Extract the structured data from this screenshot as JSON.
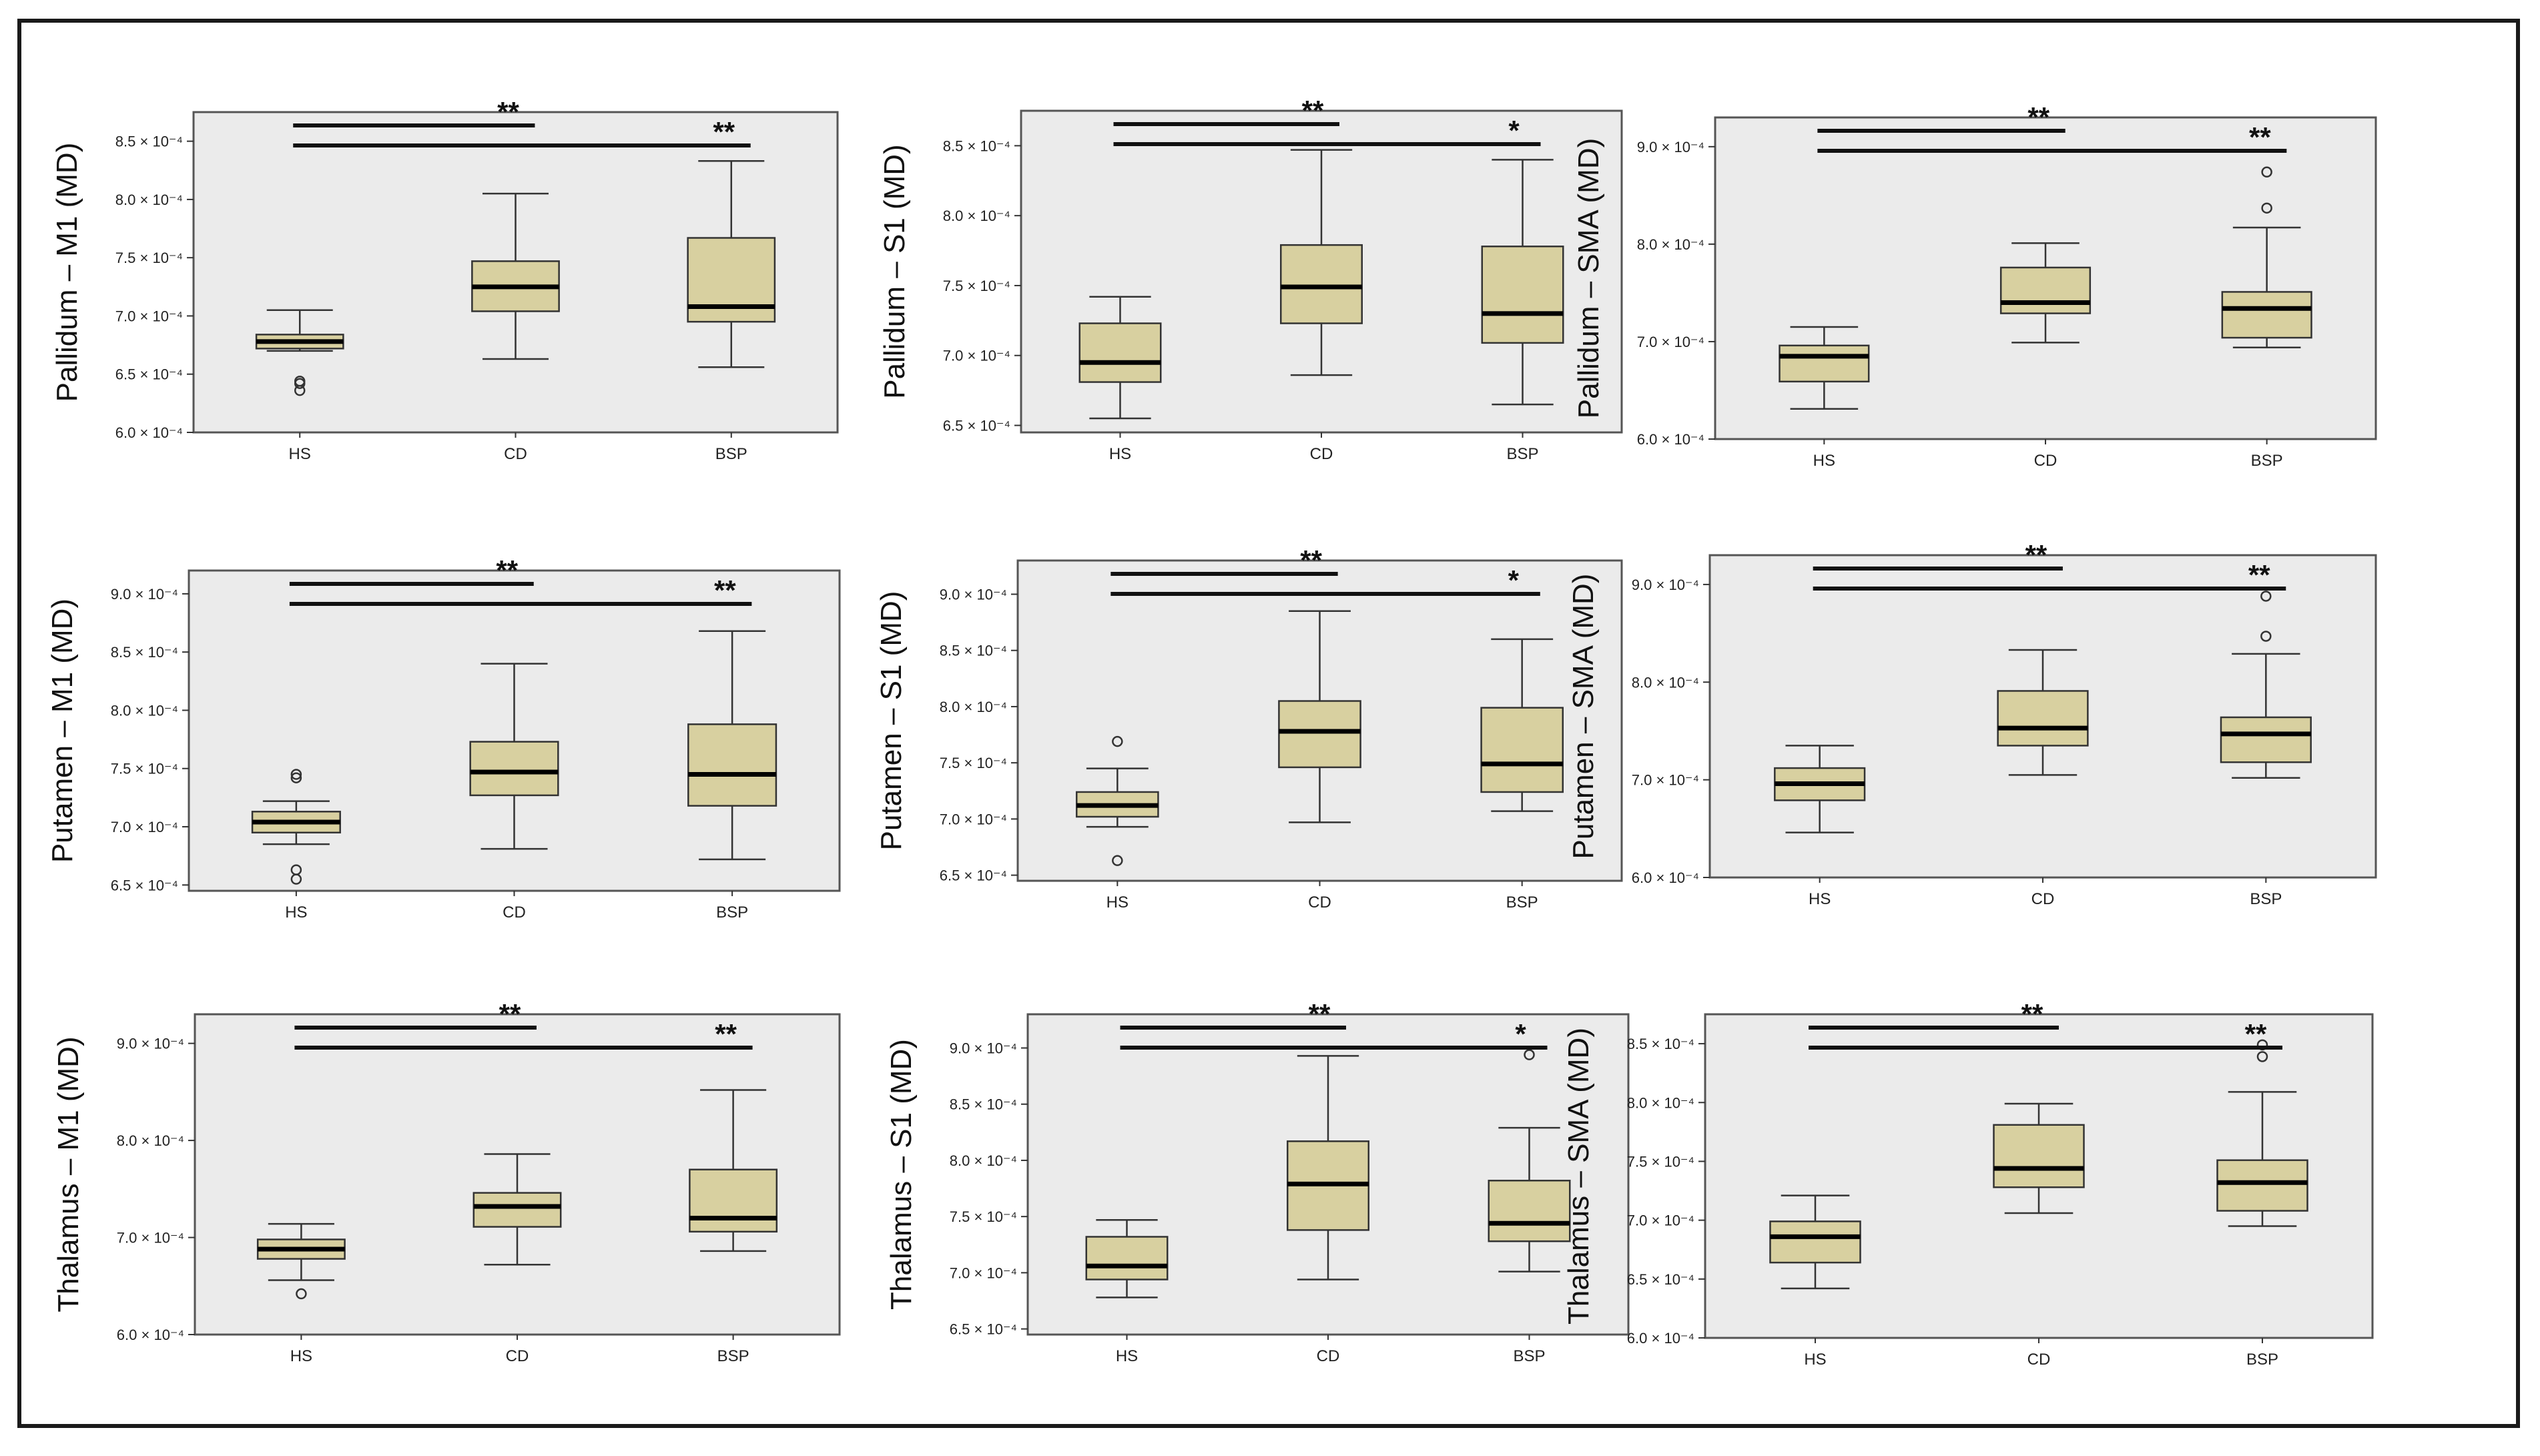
{
  "figure": {
    "frame_color": "#1a1a1a",
    "plot_background": "#ebebeb",
    "box_fill": "#d8d0a0",
    "box_stroke": "#333333",
    "median_color": "#000000",
    "exponent_suffix": "× 10⁻⁴"
  },
  "chart_data": [
    {
      "type": "box",
      "ylabel": "Pallidum – M1 (MD)",
      "categories": [
        "HS",
        "CD",
        "BSP"
      ],
      "yticks": [
        "6.0",
        "6.5",
        "7.0",
        "7.5",
        "8.0",
        "8.5"
      ],
      "ylim": [
        6.0,
        8.75
      ],
      "boxes": [
        {
          "min": 6.7,
          "q1": 6.72,
          "median": 6.78,
          "q3": 6.84,
          "max": 7.05,
          "outliers": [
            6.36,
            6.42,
            6.44
          ]
        },
        {
          "min": 6.63,
          "q1": 7.04,
          "median": 7.25,
          "q3": 7.47,
          "max": 8.05,
          "outliers": []
        },
        {
          "min": 6.56,
          "q1": 6.95,
          "median": 7.08,
          "q3": 7.67,
          "max": 8.33,
          "outliers": []
        }
      ],
      "sig": [
        {
          "to": 1,
          "label": "**"
        },
        {
          "to": 2,
          "label": "**"
        }
      ]
    },
    {
      "type": "box",
      "ylabel": "Pallidum – S1 (MD)",
      "categories": [
        "HS",
        "CD",
        "BSP"
      ],
      "yticks": [
        "6.5",
        "7.0",
        "7.5",
        "8.0",
        "8.5"
      ],
      "ylim": [
        6.45,
        8.75
      ],
      "boxes": [
        {
          "min": 6.55,
          "q1": 6.81,
          "median": 6.95,
          "q3": 7.23,
          "max": 7.42,
          "outliers": []
        },
        {
          "min": 6.86,
          "q1": 7.23,
          "median": 7.49,
          "q3": 7.79,
          "max": 8.47,
          "outliers": []
        },
        {
          "min": 6.65,
          "q1": 7.09,
          "median": 7.3,
          "q3": 7.78,
          "max": 8.4,
          "outliers": []
        }
      ],
      "sig": [
        {
          "to": 1,
          "label": "**"
        },
        {
          "to": 2,
          "label": "*"
        }
      ]
    },
    {
      "type": "box",
      "ylabel": "Pallidum – SMA (MD)",
      "categories": [
        "HS",
        "CD",
        "BSP"
      ],
      "yticks": [
        "6.0",
        "7.0",
        "8.0",
        "9.0"
      ],
      "ylim": [
        6.0,
        9.3
      ],
      "boxes": [
        {
          "min": 6.31,
          "q1": 6.59,
          "median": 6.85,
          "q3": 6.96,
          "max": 7.15,
          "outliers": []
        },
        {
          "min": 6.99,
          "q1": 7.29,
          "median": 7.4,
          "q3": 7.76,
          "max": 8.01,
          "outliers": []
        },
        {
          "min": 6.94,
          "q1": 7.04,
          "median": 7.34,
          "q3": 7.51,
          "max": 8.17,
          "outliers": [
            8.37,
            8.74
          ]
        }
      ],
      "sig": [
        {
          "to": 1,
          "label": "**"
        },
        {
          "to": 2,
          "label": "**"
        }
      ]
    },
    {
      "type": "box",
      "ylabel": "Putamen – M1 (MD)",
      "categories": [
        "HS",
        "CD",
        "BSP"
      ],
      "yticks": [
        "6.5",
        "7.0",
        "7.5",
        "8.0",
        "8.5",
        "9.0"
      ],
      "ylim": [
        6.45,
        9.2
      ],
      "boxes": [
        {
          "min": 6.85,
          "q1": 6.95,
          "median": 7.04,
          "q3": 7.13,
          "max": 7.22,
          "outliers": [
            6.55,
            6.63,
            7.42,
            7.45
          ]
        },
        {
          "min": 6.81,
          "q1": 7.27,
          "median": 7.47,
          "q3": 7.73,
          "max": 8.4,
          "outliers": []
        },
        {
          "min": 6.72,
          "q1": 7.18,
          "median": 7.45,
          "q3": 7.88,
          "max": 8.68,
          "outliers": []
        }
      ],
      "sig": [
        {
          "to": 1,
          "label": "**"
        },
        {
          "to": 2,
          "label": "**"
        }
      ]
    },
    {
      "type": "box",
      "ylabel": "Putamen – S1 (MD)",
      "categories": [
        "HS",
        "CD",
        "BSP"
      ],
      "yticks": [
        "6.5",
        "7.0",
        "7.5",
        "8.0",
        "8.5",
        "9.0"
      ],
      "ylim": [
        6.45,
        9.3
      ],
      "boxes": [
        {
          "min": 6.93,
          "q1": 7.02,
          "median": 7.12,
          "q3": 7.24,
          "max": 7.45,
          "outliers": [
            6.63,
            7.69
          ]
        },
        {
          "min": 6.97,
          "q1": 7.46,
          "median": 7.78,
          "q3": 8.05,
          "max": 8.85,
          "outliers": []
        },
        {
          "min": 7.07,
          "q1": 7.24,
          "median": 7.49,
          "q3": 7.99,
          "max": 8.6,
          "outliers": []
        }
      ],
      "sig": [
        {
          "to": 1,
          "label": "**"
        },
        {
          "to": 2,
          "label": "*"
        }
      ]
    },
    {
      "type": "box",
      "ylabel": "Putamen – SMA (MD)",
      "categories": [
        "HS",
        "CD",
        "BSP"
      ],
      "yticks": [
        "6.0",
        "7.0",
        "8.0",
        "9.0"
      ],
      "ylim": [
        6.0,
        9.3
      ],
      "boxes": [
        {
          "min": 6.46,
          "q1": 6.79,
          "median": 6.96,
          "q3": 7.12,
          "max": 7.35,
          "outliers": []
        },
        {
          "min": 7.05,
          "q1": 7.35,
          "median": 7.53,
          "q3": 7.91,
          "max": 8.33,
          "outliers": []
        },
        {
          "min": 7.02,
          "q1": 7.18,
          "median": 7.47,
          "q3": 7.64,
          "max": 8.29,
          "outliers": [
            8.47,
            8.88
          ]
        }
      ],
      "sig": [
        {
          "to": 1,
          "label": "**"
        },
        {
          "to": 2,
          "label": "**"
        }
      ]
    },
    {
      "type": "box",
      "ylabel": "Thalamus – M1 (MD)",
      "categories": [
        "HS",
        "CD",
        "BSP"
      ],
      "yticks": [
        "6.0",
        "7.0",
        "8.0",
        "9.0"
      ],
      "ylim": [
        6.0,
        9.3
      ],
      "boxes": [
        {
          "min": 6.56,
          "q1": 6.78,
          "median": 6.88,
          "q3": 6.98,
          "max": 7.14,
          "outliers": [
            6.42
          ]
        },
        {
          "min": 6.72,
          "q1": 7.11,
          "median": 7.32,
          "q3": 7.46,
          "max": 7.86,
          "outliers": []
        },
        {
          "min": 6.86,
          "q1": 7.06,
          "median": 7.2,
          "q3": 7.7,
          "max": 8.52,
          "outliers": []
        }
      ],
      "sig": [
        {
          "to": 1,
          "label": "**"
        },
        {
          "to": 2,
          "label": "**"
        }
      ]
    },
    {
      "type": "box",
      "ylabel": "Thalamus – S1 (MD)",
      "categories": [
        "HS",
        "CD",
        "BSP"
      ],
      "yticks": [
        "6.5",
        "7.0",
        "7.5",
        "8.0",
        "8.5",
        "9.0"
      ],
      "ylim": [
        6.45,
        9.3
      ],
      "boxes": [
        {
          "min": 6.78,
          "q1": 6.94,
          "median": 7.06,
          "q3": 7.32,
          "max": 7.47,
          "outliers": []
        },
        {
          "min": 6.94,
          "q1": 7.38,
          "median": 7.79,
          "q3": 8.17,
          "max": 8.93,
          "outliers": []
        },
        {
          "min": 7.01,
          "q1": 7.28,
          "median": 7.44,
          "q3": 7.82,
          "max": 8.29,
          "outliers": [
            8.94
          ]
        }
      ],
      "sig": [
        {
          "to": 1,
          "label": "**"
        },
        {
          "to": 2,
          "label": "*"
        }
      ]
    },
    {
      "type": "box",
      "ylabel": "Thalamus – SMA (MD)",
      "categories": [
        "HS",
        "CD",
        "BSP"
      ],
      "yticks": [
        "6.0",
        "6.5",
        "7.0",
        "7.5",
        "8.0",
        "8.5"
      ],
      "ylim": [
        6.0,
        8.75
      ],
      "boxes": [
        {
          "min": 6.42,
          "q1": 6.64,
          "median": 6.86,
          "q3": 6.99,
          "max": 7.21,
          "outliers": []
        },
        {
          "min": 7.06,
          "q1": 7.28,
          "median": 7.44,
          "q3": 7.81,
          "max": 7.99,
          "outliers": []
        },
        {
          "min": 6.95,
          "q1": 7.08,
          "median": 7.32,
          "q3": 7.51,
          "max": 8.09,
          "outliers": [
            8.39,
            8.49
          ]
        }
      ],
      "sig": [
        {
          "to": 1,
          "label": "**"
        },
        {
          "to": 2,
          "label": "**"
        }
      ]
    }
  ]
}
